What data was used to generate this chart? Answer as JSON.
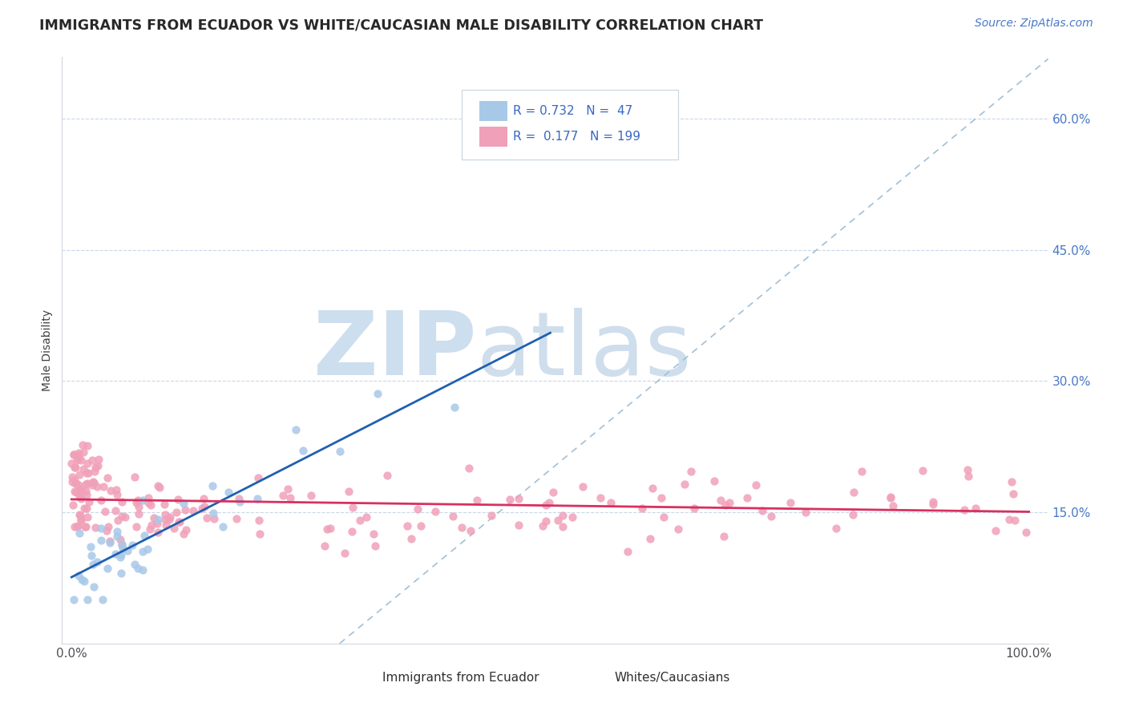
{
  "title": "IMMIGRANTS FROM ECUADOR VS WHITE/CAUCASIAN MALE DISABILITY CORRELATION CHART",
  "source": "Source: ZipAtlas.com",
  "ylabel": "Male Disability",
  "legend_labels": [
    "Immigrants from Ecuador",
    "Whites/Caucasians"
  ],
  "legend_R": [
    0.732,
    0.177
  ],
  "legend_N": [
    47,
    199
  ],
  "blue_color": "#A8C8E8",
  "pink_color": "#F0A0B8",
  "blue_line_color": "#2060B0",
  "pink_line_color": "#D83060",
  "dashed_line_color": "#A0C0D8",
  "ytick_labels": [
    "15.0%",
    "30.0%",
    "45.0%",
    "60.0%"
  ],
  "ytick_values": [
    0.15,
    0.3,
    0.45,
    0.6
  ],
  "xtick_labels": [
    "0.0%",
    "100.0%"
  ],
  "ylim": [
    0.0,
    0.67
  ],
  "xlim": [
    -0.01,
    1.02
  ],
  "watermark_zip": "ZIP",
  "watermark_atlas": "atlas",
  "watermark_color_zip": "#B8D0E8",
  "watermark_color_atlas": "#B0C8E0"
}
